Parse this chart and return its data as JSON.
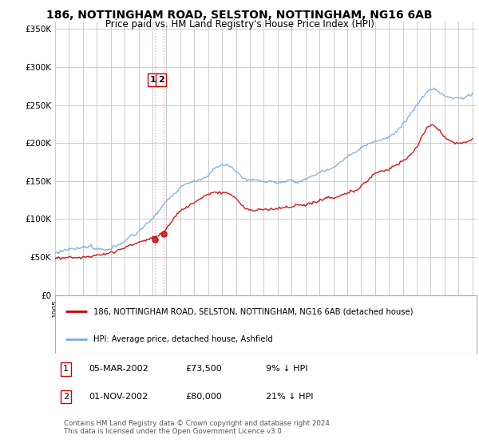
{
  "title": "186, NOTTINGHAM ROAD, SELSTON, NOTTINGHAM, NG16 6AB",
  "subtitle": "Price paid vs. HM Land Registry's House Price Index (HPI)",
  "red_label": "186, NOTTINGHAM ROAD, SELSTON, NOTTINGHAM, NG16 6AB (detached house)",
  "blue_label": "HPI: Average price, detached house, Ashfield",
  "transactions": [
    {
      "num": 1,
      "date": "05-MAR-2002",
      "price": "£73,500",
      "hpi_diff": "9% ↓ HPI",
      "year": 2002.17,
      "value": 73500
    },
    {
      "num": 2,
      "date": "01-NOV-2002",
      "price": "£80,000",
      "hpi_diff": "21% ↓ HPI",
      "year": 2002.83,
      "value": 80000
    }
  ],
  "footnote": "Contains HM Land Registry data © Crown copyright and database right 2024.\nThis data is licensed under the Open Government Licence v3.0.",
  "ylim": [
    0,
    360000
  ],
  "yticks": [
    0,
    50000,
    100000,
    150000,
    200000,
    250000,
    300000,
    350000
  ],
  "background_color": "#ffffff",
  "grid_color": "#cccccc",
  "red_color": "#cc0000",
  "blue_color": "#7aaddc",
  "vline_color": "#ffaaaa",
  "t1_year": 2002.17,
  "t2_year": 2002.83,
  "t1_val": 73500,
  "t2_val": 80000
}
